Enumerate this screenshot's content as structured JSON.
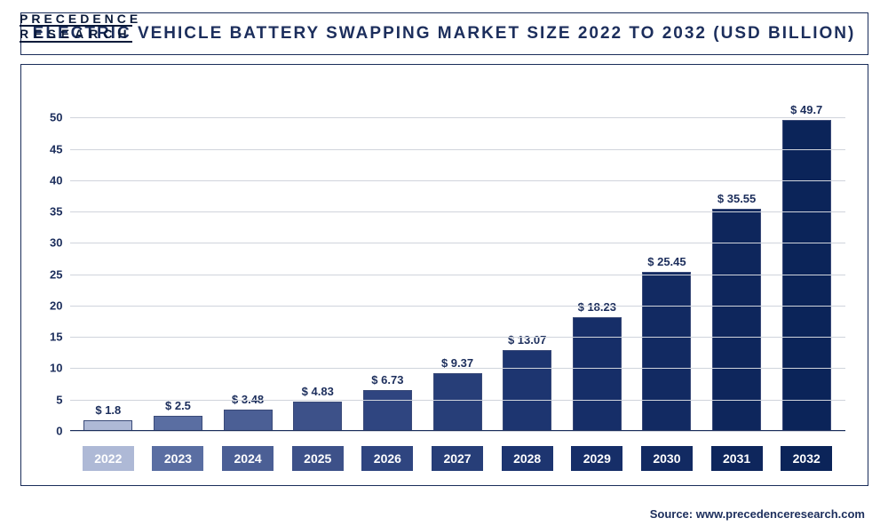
{
  "logo": {
    "line1": "PRECEDENCE",
    "line2": "RESEARCH"
  },
  "title": "ELECTRIC VEHICLE BATTERY SWAPPING MARKET SIZE 2022 TO 2032 (USD BILLION)",
  "source": "Source: www.precedenceresearch.com",
  "chart": {
    "type": "bar",
    "ylim": [
      0,
      55
    ],
    "ytick_step": 5,
    "yticks": [
      0,
      5,
      10,
      15,
      20,
      25,
      30,
      35,
      40,
      45,
      50
    ],
    "grid_color": "#d0d4dc",
    "background_color": "#ffffff",
    "border_color": "#1a2d5a",
    "label_color": "#1c2e5c",
    "label_fontsize": 13,
    "value_prefix": "$ ",
    "bar_width_pct": 70,
    "categories": [
      "2022",
      "2023",
      "2024",
      "2025",
      "2026",
      "2027",
      "2028",
      "2029",
      "2030",
      "2031",
      "2032"
    ],
    "values": [
      1.8,
      2.5,
      3.48,
      4.83,
      6.73,
      9.37,
      13.07,
      18.23,
      25.45,
      35.55,
      49.7
    ],
    "bar_colors": [
      "#aeb9d6",
      "#5a6ea2",
      "#4b5f95",
      "#3d5189",
      "#2f4580",
      "#273e78",
      "#1d3570",
      "#162e68",
      "#122a62",
      "#0e265c",
      "#0b2459"
    ],
    "xlabel_bg_colors": [
      "#aeb9d6",
      "#5a6ea2",
      "#4b5f95",
      "#3d5189",
      "#2f4580",
      "#273e78",
      "#1d3570",
      "#162e68",
      "#122a62",
      "#0e265c",
      "#0b2459"
    ]
  }
}
